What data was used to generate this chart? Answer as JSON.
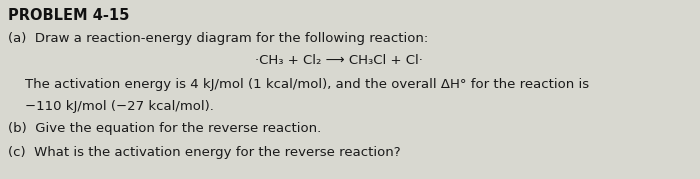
{
  "title": "PROBLEM 4-15",
  "line_a": "(a)  Draw a reaction-energy diagram for the following reaction:",
  "reaction": "·CH₃ + Cl₂ ⟶ CH₃Cl + Cl·",
  "line_b1": "    The activation energy is 4 kJ/mol (1 kcal/mol), and the overall ΔH° for the reaction is",
  "line_b2": "    −110 kJ/mol (−27 kcal/mol).",
  "line_c": "(b)  Give the equation for the reverse reaction.",
  "line_d": "(c)  What is the activation energy for the reverse reaction?",
  "bg_color": "#d8d8d0",
  "text_color": "#1a1a1a",
  "title_color": "#111111",
  "fig_width": 7.0,
  "fig_height": 1.79
}
